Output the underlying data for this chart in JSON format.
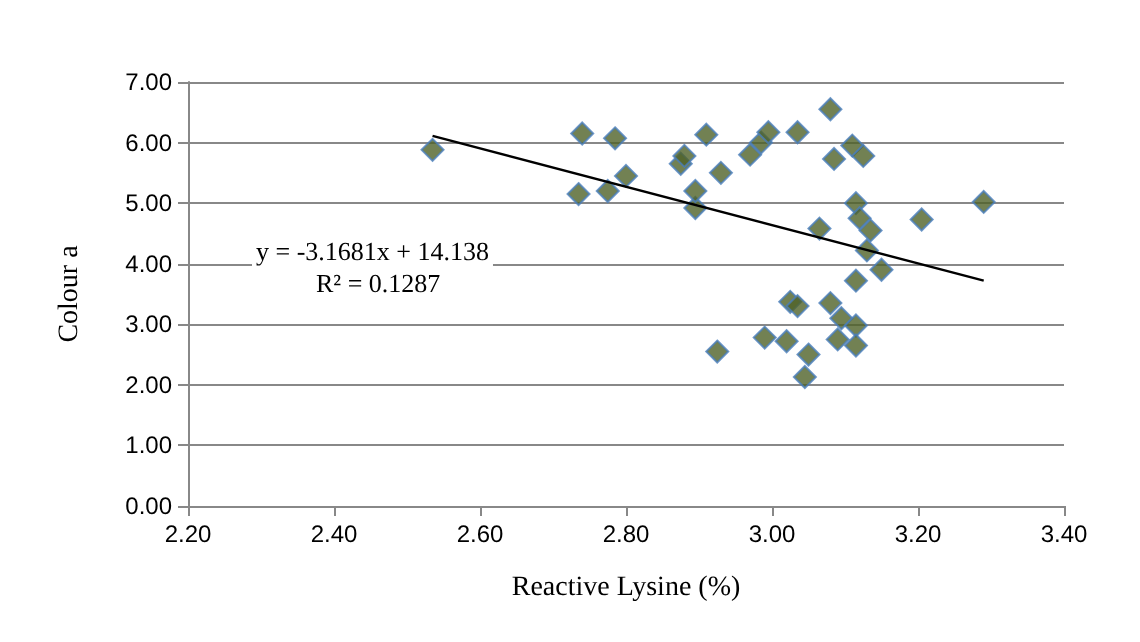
{
  "chart_data": {
    "type": "scatter",
    "xlabel": "Reactive Lysine (%)",
    "ylabel": "Colour a",
    "marker": "diamond",
    "grid": "y",
    "xlim": [
      2.2,
      3.4
    ],
    "xticks": [
      {
        "value": 2.2,
        "label": "2.20"
      },
      {
        "value": 2.4,
        "label": "2.40"
      },
      {
        "value": 2.6,
        "label": "2.60"
      },
      {
        "value": 2.8,
        "label": "2.80"
      },
      {
        "value": 3.0,
        "label": "3.00"
      },
      {
        "value": 3.2,
        "label": "3.20"
      },
      {
        "value": 3.4,
        "label": "3.40"
      }
    ],
    "ylim": [
      0,
      7
    ],
    "yticks": [
      {
        "value": 0,
        "label": "0.00"
      },
      {
        "value": 1,
        "label": "1.00"
      },
      {
        "value": 2,
        "label": "2.00"
      },
      {
        "value": 3,
        "label": "3.00"
      },
      {
        "value": 4,
        "label": "4.00"
      },
      {
        "value": 5,
        "label": "5.00"
      },
      {
        "value": 6,
        "label": "6.00"
      },
      {
        "value": 7,
        "label": "7.00"
      }
    ],
    "annotations": [
      "y = -3.1681x + 14.138",
      "R² = 0.1287"
    ],
    "series": [
      {
        "color": "#4f6228",
        "x": [
          2.535,
          2.735,
          2.74,
          2.775,
          2.785,
          2.8,
          2.875,
          2.88,
          2.895,
          2.895,
          2.91,
          2.93,
          2.97,
          2.985,
          2.995,
          3.035,
          3.08,
          3.085,
          3.11,
          3.125,
          3.115,
          3.12,
          3.135,
          3.13,
          3.065,
          3.205,
          3.29,
          3.15,
          3.115,
          3.025,
          3.035,
          3.08,
          3.095,
          3.115,
          2.925,
          2.99,
          3.02,
          3.09,
          3.115,
          3.05,
          3.045
        ],
        "values": [
          5.88,
          5.15,
          6.15,
          5.2,
          6.07,
          5.45,
          5.65,
          5.78,
          4.92,
          5.2,
          6.13,
          5.5,
          5.8,
          6.0,
          6.17,
          6.17,
          6.55,
          5.73,
          5.95,
          5.78,
          5.0,
          4.75,
          4.55,
          4.22,
          4.58,
          4.73,
          5.02,
          3.9,
          3.72,
          3.37,
          3.3,
          3.35,
          3.1,
          2.98,
          2.55,
          2.78,
          2.72,
          2.75,
          2.65,
          2.5,
          2.13
        ]
      },
      {
        "type": "line",
        "color": "#000000",
        "marker": "none",
        "x": [
          2.535,
          3.29
        ],
        "values": [
          6.11,
          3.72
        ]
      }
    ]
  }
}
